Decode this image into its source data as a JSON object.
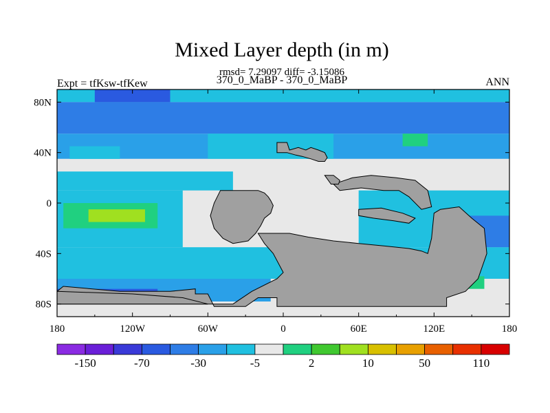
{
  "chart_data": {
    "type": "heatmap",
    "title": "Mixed Layer depth (in m)",
    "stats_line": "rmsd= 7.29097 diff= -3.15086",
    "subtitle": "370_0_MaBP - 370_0_MaBP",
    "left_label": "Expt = tfKsw-tfKew",
    "right_label": "ANN",
    "x_ticks": [
      {
        "value": -180,
        "label": "180"
      },
      {
        "value": -120,
        "label": "120W"
      },
      {
        "value": -60,
        "label": "60W"
      },
      {
        "value": 0,
        "label": "0"
      },
      {
        "value": 60,
        "label": "60E"
      },
      {
        "value": 120,
        "label": "120E"
      },
      {
        "value": 180,
        "label": "180"
      }
    ],
    "y_ticks": [
      {
        "value": 80,
        "label": "80N"
      },
      {
        "value": 40,
        "label": "40N"
      },
      {
        "value": 0,
        "label": "0"
      },
      {
        "value": -40,
        "label": "40S"
      },
      {
        "value": -80,
        "label": "80S"
      }
    ],
    "xlim": [
      -180,
      180
    ],
    "ylim": [
      -90,
      90
    ],
    "land_color": "#a0a0a0",
    "colorbar": {
      "colors": [
        "#8a2be2",
        "#6a1fd8",
        "#3a3ad8",
        "#2a5ae0",
        "#2e7de6",
        "#2aa0e8",
        "#20c0e0",
        "#e8e8e8",
        "#20d080",
        "#40c830",
        "#a0e020",
        "#d8c000",
        "#e8a000",
        "#e86000",
        "#e83000",
        "#d80000"
      ],
      "labels": [
        {
          "boundary": 1,
          "text": "-150"
        },
        {
          "boundary": 3,
          "text": "-70"
        },
        {
          "boundary": 5,
          "text": "-30"
        },
        {
          "boundary": 7,
          "text": "-5"
        },
        {
          "boundary": 9,
          "text": "2"
        },
        {
          "boundary": 11,
          "text": "10"
        },
        {
          "boundary": 13,
          "text": "50"
        },
        {
          "boundary": 15,
          "text": "110"
        }
      ]
    },
    "fields": [
      {
        "lon": [
          -180,
          180
        ],
        "lat": [
          80,
          90
        ],
        "color": "#20c0e0"
      },
      {
        "lon": [
          -180,
          180
        ],
        "lat": [
          55,
          80
        ],
        "color": "#2e7de6"
      },
      {
        "lon": [
          -150,
          -90
        ],
        "lat": [
          80,
          90
        ],
        "color": "#2a5ae0"
      },
      {
        "lon": [
          -180,
          180
        ],
        "lat": [
          35,
          55
        ],
        "color": "#2aa0e8"
      },
      {
        "lon": [
          -60,
          40
        ],
        "lat": [
          30,
          55
        ],
        "color": "#20c0e0"
      },
      {
        "lon": [
          -180,
          180
        ],
        "lat": [
          10,
          35
        ],
        "color": "#e8e8e8"
      },
      {
        "lon": [
          -170,
          -130
        ],
        "lat": [
          35,
          45
        ],
        "color": "#20c0e0"
      },
      {
        "lon": [
          -180,
          -40
        ],
        "lat": [
          10,
          25
        ],
        "color": "#20c0e0"
      },
      {
        "lon": [
          -180,
          -80
        ],
        "lat": [
          -35,
          10
        ],
        "color": "#20c0e0"
      },
      {
        "lon": [
          -175,
          -100
        ],
        "lat": [
          -20,
          0
        ],
        "color": "#20d080"
      },
      {
        "lon": [
          -155,
          -110
        ],
        "lat": [
          -15,
          -5
        ],
        "color": "#a0e020"
      },
      {
        "lon": [
          -180,
          180
        ],
        "lat": [
          -45,
          -35
        ],
        "color": "#20c0e0"
      },
      {
        "lon": [
          60,
          180
        ],
        "lat": [
          -35,
          10
        ],
        "color": "#20c0e0"
      },
      {
        "lon": [
          95,
          115
        ],
        "lat": [
          45,
          55
        ],
        "color": "#20d080"
      },
      {
        "lon": [
          140,
          180
        ],
        "lat": [
          -35,
          -10
        ],
        "color": "#2e7de6"
      },
      {
        "lon": [
          -180,
          180
        ],
        "lat": [
          -60,
          -45
        ],
        "color": "#20c0e0"
      },
      {
        "lon": [
          -180,
          -10
        ],
        "lat": [
          -78,
          -60
        ],
        "color": "#2aa0e8"
      },
      {
        "lon": [
          -180,
          -100
        ],
        "lat": [
          -78,
          -68
        ],
        "color": "#2a5ae0"
      },
      {
        "lon": [
          -150,
          -120
        ],
        "lat": [
          -78,
          -72
        ],
        "color": "#3a3ad8"
      },
      {
        "lon": [
          130,
          160
        ],
        "lat": [
          -68,
          -58
        ],
        "color": "#20d080"
      },
      {
        "lon": [
          135,
          150
        ],
        "lat": [
          -65,
          -60
        ],
        "color": "#a0e020"
      },
      {
        "lon": [
          -180,
          180
        ],
        "lat": [
          -90,
          -78
        ],
        "color": "#e8e8e8"
      }
    ],
    "land": [
      [
        [
          -5,
          48
        ],
        [
          3,
          48
        ],
        [
          5,
          42
        ],
        [
          12,
          44
        ],
        [
          18,
          42
        ],
        [
          22,
          44
        ],
        [
          28,
          42
        ],
        [
          33,
          40
        ],
        [
          35,
          36
        ],
        [
          33,
          33
        ],
        [
          28,
          33
        ],
        [
          22,
          35
        ],
        [
          15,
          37
        ],
        [
          10,
          38
        ],
        [
          3,
          40
        ],
        [
          -5,
          40
        ]
      ],
      [
        [
          -50,
          10
        ],
        [
          -20,
          10
        ],
        [
          -15,
          8
        ],
        [
          -12,
          5
        ],
        [
          -10,
          2
        ],
        [
          -8,
          -2
        ],
        [
          -10,
          -8
        ],
        [
          -15,
          -12
        ],
        [
          -18,
          -18
        ],
        [
          -22,
          -24
        ],
        [
          -28,
          -30
        ],
        [
          -40,
          -32
        ],
        [
          -48,
          -28
        ],
        [
          -55,
          -20
        ],
        [
          -58,
          -10
        ],
        [
          -55,
          0
        ]
      ],
      [
        [
          -20,
          -24
        ],
        [
          5,
          -24
        ],
        [
          20,
          -27
        ],
        [
          40,
          -30
        ],
        [
          60,
          -32
        ],
        [
          80,
          -34
        ],
        [
          100,
          -36
        ],
        [
          110,
          -38
        ],
        [
          115,
          -40
        ],
        [
          118,
          -28
        ],
        [
          120,
          -8
        ],
        [
          125,
          -5
        ],
        [
          140,
          -3
        ],
        [
          150,
          -12
        ],
        [
          160,
          -20
        ],
        [
          162,
          -40
        ],
        [
          155,
          -60
        ],
        [
          145,
          -70
        ],
        [
          130,
          -75
        ],
        [
          130,
          -82
        ],
        [
          -5,
          -82
        ],
        [
          -5,
          -75
        ],
        [
          -20,
          -75
        ],
        [
          -30,
          -82
        ],
        [
          -55,
          -82
        ],
        [
          -60,
          -72
        ],
        [
          -70,
          -72
        ],
        [
          -70,
          -68
        ],
        [
          -90,
          -70
        ],
        [
          -130,
          -70
        ],
        [
          -175,
          -66
        ],
        [
          -180,
          -70
        ],
        [
          -180,
          -80
        ],
        [
          -40,
          -80
        ],
        [
          -25,
          -70
        ],
        [
          -5,
          -60
        ],
        [
          0,
          -55
        ],
        [
          -8,
          -40
        ],
        [
          -15,
          -32
        ]
      ],
      [
        [
          40,
          15
        ],
        [
          45,
          10
        ],
        [
          62,
          12
        ],
        [
          80,
          10
        ],
        [
          92,
          10
        ],
        [
          100,
          5
        ],
        [
          110,
          -5
        ],
        [
          118,
          -3
        ],
        [
          115,
          10
        ],
        [
          105,
          18
        ],
        [
          90,
          20
        ],
        [
          70,
          22
        ],
        [
          55,
          20
        ]
      ],
      [
        [
          -180,
          -70
        ],
        [
          -120,
          -72
        ],
        [
          -80,
          -75
        ],
        [
          -60,
          -80
        ],
        [
          -180,
          -80
        ]
      ],
      [
        [
          60,
          -5
        ],
        [
          78,
          -4
        ],
        [
          95,
          -8
        ],
        [
          105,
          -12
        ],
        [
          100,
          -16
        ],
        [
          88,
          -14
        ],
        [
          72,
          -12
        ],
        [
          60,
          -10
        ]
      ],
      [
        [
          33,
          22
        ],
        [
          40,
          22
        ],
        [
          45,
          18
        ],
        [
          44,
          15
        ],
        [
          38,
          15
        ]
      ]
    ]
  }
}
